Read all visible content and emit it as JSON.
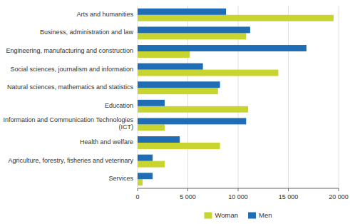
{
  "chart_data": {
    "type": "bar",
    "orientation": "horizontal",
    "categories": [
      "Arts and humanities",
      "Business, administration and law",
      "Engineering, manufacturing and construction",
      "Social sciences, journalism and information",
      "Natural sciences, mathematics and statistics",
      "Education",
      "Information and Communication Technologies\n(ICT)",
      "Health and welfare",
      "Agriculture, forestry, fisheries and veterinary",
      "Services"
    ],
    "series": [
      {
        "name": "Woman",
        "color": "#c8d42f",
        "values": [
          19500,
          10800,
          5200,
          14000,
          8000,
          11000,
          2700,
          8200,
          2700,
          500
        ]
      },
      {
        "name": "Men",
        "color": "#1f6db5",
        "values": [
          8800,
          11200,
          16800,
          6500,
          8200,
          2700,
          10800,
          4200,
          1500,
          1500
        ]
      }
    ],
    "xlim": [
      0,
      20000
    ],
    "xticks": [
      0,
      {
        "value": 5000,
        "label": "5 000"
      },
      {
        "value": 10000,
        "label": "10 000"
      },
      {
        "value": 15000,
        "label": "15 000"
      },
      {
        "value": 20000,
        "label": "20 000"
      }
    ],
    "grid": true,
    "legend": "bottom"
  }
}
